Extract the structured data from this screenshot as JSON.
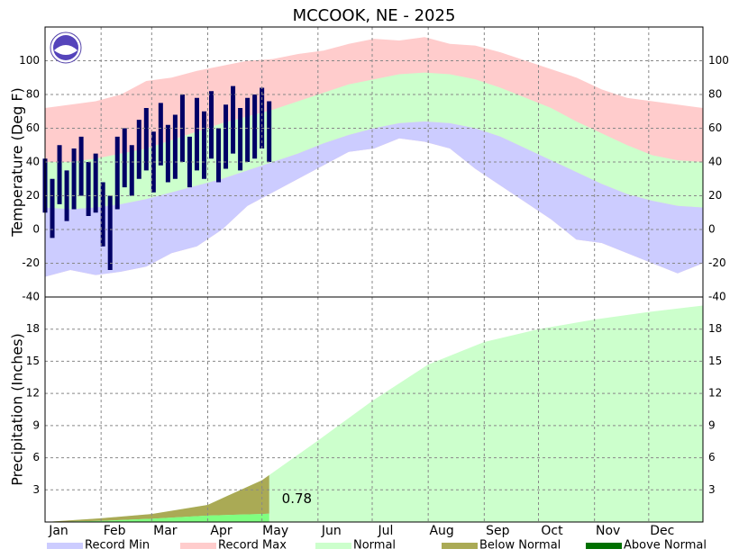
{
  "chart_data": [
    {
      "type": "climate_temperature",
      "title": "MCCOOK, NE - 2025",
      "y_label": "Temperature (Deg F)",
      "xlim": [
        1,
        365
      ],
      "ylim": [
        -40,
        120
      ],
      "yticks": [
        -40,
        -20,
        0,
        20,
        40,
        60,
        80,
        100
      ],
      "grid": true,
      "x": [
        1,
        15,
        29,
        43,
        57,
        71,
        85,
        99,
        113,
        127,
        141,
        155,
        169,
        183,
        197,
        211,
        225,
        239,
        253,
        267,
        281,
        295,
        309,
        323,
        337,
        351,
        365
      ],
      "series": [
        {
          "name": "Record Min",
          "color": "#ccccff",
          "values": [
            -28,
            -24,
            -27,
            -25,
            -22,
            -14,
            -10,
            0,
            14,
            22,
            30,
            38,
            46,
            48,
            54,
            52,
            48,
            36,
            26,
            16,
            6,
            -6,
            -8,
            -14,
            -20,
            -26,
            -20
          ]
        },
        {
          "name": "Record Max",
          "color": "#ffcccc",
          "values": [
            72,
            74,
            76,
            80,
            88,
            90,
            94,
            97,
            100,
            101,
            104,
            106,
            110,
            113,
            112,
            114,
            110,
            109,
            105,
            100,
            95,
            90,
            83,
            78,
            76,
            74,
            72
          ]
        },
        {
          "name": "Normal",
          "color": "#ccffcc",
          "values": [
            40,
            40,
            42,
            45,
            48,
            53,
            58,
            63,
            67,
            71,
            76,
            81,
            86,
            89,
            92,
            93,
            92,
            89,
            84,
            78,
            72,
            64,
            57,
            50,
            44,
            41,
            40
          ],
          "low": [
            13,
            12,
            13,
            15,
            18,
            22,
            26,
            30,
            35,
            40,
            45,
            51,
            56,
            60,
            63,
            64,
            63,
            60,
            55,
            48,
            41,
            34,
            27,
            21,
            17,
            14,
            13
          ]
        }
      ],
      "observed": {
        "color": "#000066",
        "x": [
          1,
          5,
          9,
          13,
          17,
          21,
          25,
          29,
          33,
          37,
          41,
          45,
          49,
          53,
          57,
          61,
          65,
          69,
          73,
          77,
          81,
          85,
          89,
          93,
          97,
          101,
          105,
          109,
          113,
          117,
          121,
          125
        ],
        "high": [
          42,
          30,
          50,
          35,
          48,
          55,
          40,
          45,
          28,
          20,
          55,
          60,
          50,
          65,
          72,
          58,
          75,
          62,
          68,
          80,
          55,
          78,
          70,
          82,
          60,
          74,
          85,
          72,
          78,
          80,
          84,
          76
        ],
        "low": [
          10,
          -5,
          15,
          5,
          12,
          20,
          8,
          10,
          -10,
          -24,
          12,
          25,
          20,
          30,
          35,
          22,
          38,
          28,
          30,
          40,
          25,
          35,
          30,
          42,
          28,
          36,
          45,
          35,
          40,
          42,
          48,
          40
        ]
      }
    },
    {
      "type": "climate_precipitation",
      "y_label": "Precipitation (Inches)",
      "xlim": [
        1,
        365
      ],
      "ylim": [
        0,
        21
      ],
      "yticks": [
        3,
        6,
        9,
        12,
        15,
        18
      ],
      "grid": true,
      "xticks": [
        {
          "value": 1,
          "label": "Jan"
        },
        {
          "value": 32,
          "label": "Feb"
        },
        {
          "value": 60,
          "label": "Mar"
        },
        {
          "value": 91,
          "label": "Apr"
        },
        {
          "value": 121,
          "label": "May"
        },
        {
          "value": 152,
          "label": "Jun"
        },
        {
          "value": 182,
          "label": "Jul"
        },
        {
          "value": 213,
          "label": "Aug"
        },
        {
          "value": 244,
          "label": "Sep"
        },
        {
          "value": 274,
          "label": "Oct"
        },
        {
          "value": 305,
          "label": "Nov"
        },
        {
          "value": 335,
          "label": "Dec"
        }
      ],
      "normal": {
        "color": "#ccffcc",
        "x": [
          1,
          32,
          60,
          91,
          121,
          152,
          182,
          213,
          244,
          274,
          305,
          335,
          365
        ],
        "values": [
          0,
          0.35,
          0.75,
          1.6,
          3.9,
          7.6,
          11.3,
          14.7,
          16.8,
          18.0,
          18.9,
          19.6,
          20.2
        ]
      },
      "observed": {
        "color": "#80ff80",
        "x": [
          1,
          32,
          60,
          91,
          121,
          125
        ],
        "values": [
          0,
          0.1,
          0.3,
          0.6,
          0.75,
          0.78
        ]
      },
      "series": [
        {
          "name": "Below Normal",
          "color": "#aaaa55"
        },
        {
          "name": "Above Normal",
          "color": "#007000"
        }
      ]
    }
  ]
}
